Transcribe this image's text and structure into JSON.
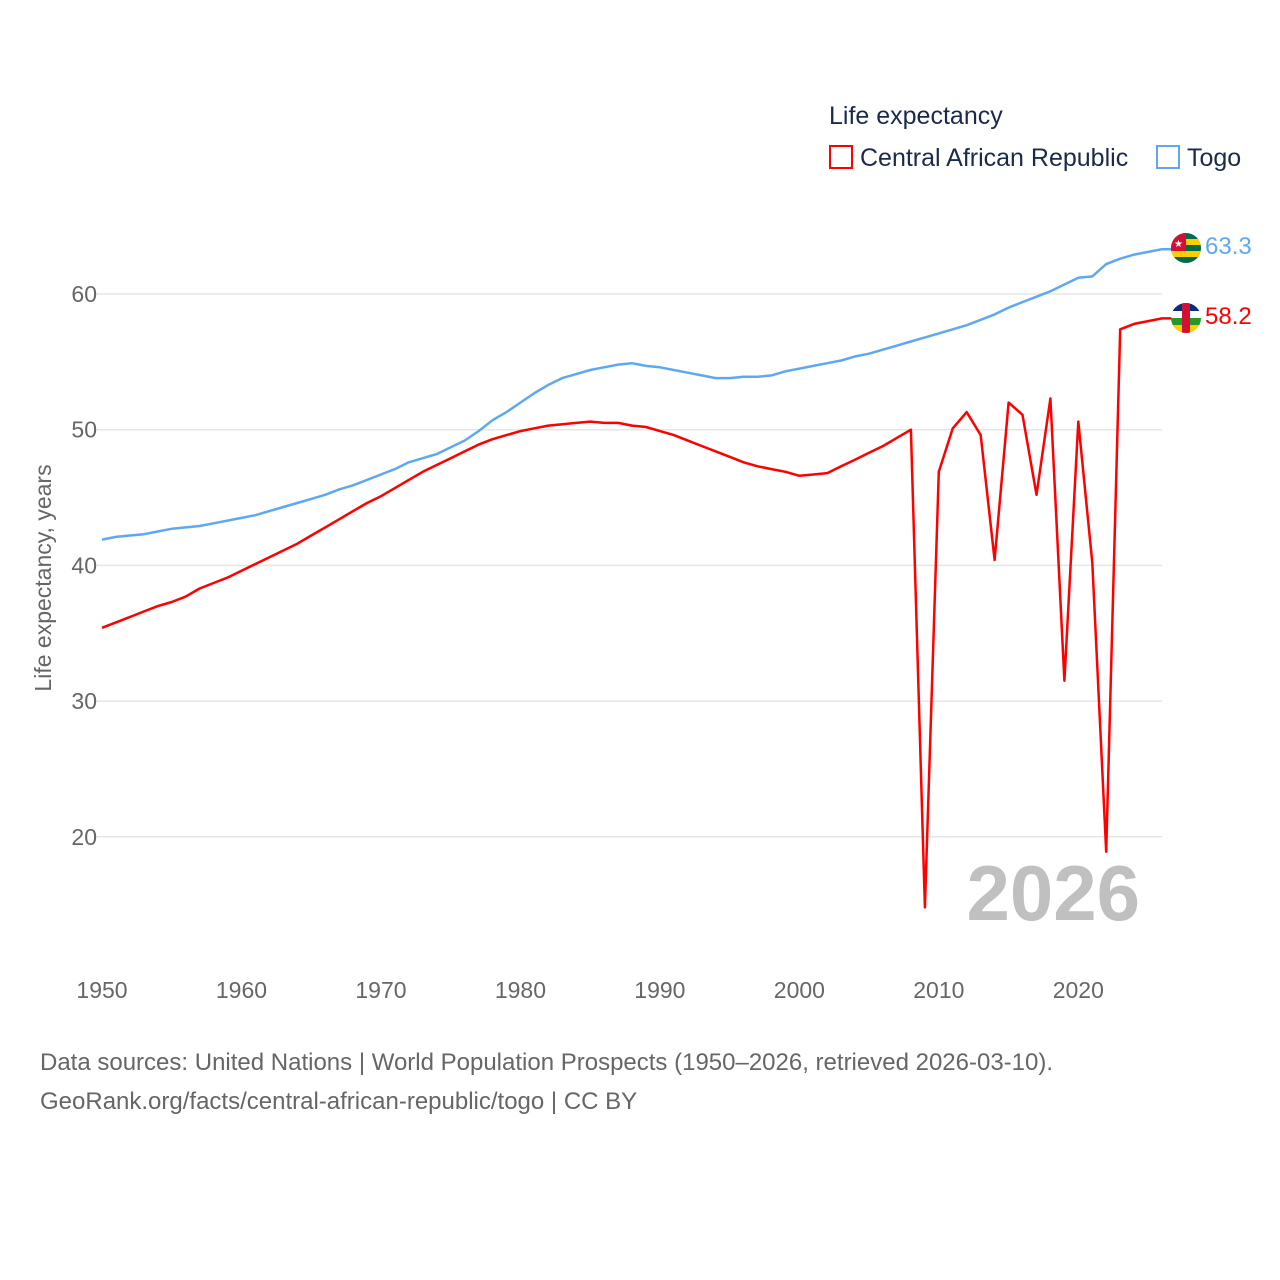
{
  "chart_data": {
    "type": "line",
    "legend_title": "Life expectancy",
    "ylabel": "Life expectancy, years",
    "xlabel": "",
    "xlim": [
      1950,
      2026
    ],
    "ylim": [
      12,
      67
    ],
    "x_ticks": [
      "1950",
      "1960",
      "1970",
      "1980",
      "1990",
      "2000",
      "2010",
      "2020"
    ],
    "y_ticks": [
      "20",
      "30",
      "40",
      "50",
      "60"
    ],
    "grid": true,
    "legend_position": "top-right",
    "current_year": "2026",
    "x_start": 1950,
    "series": [
      {
        "name": "Central African Republic",
        "color": "#ff0000",
        "end_label": "58.2",
        "values": [
          35.4,
          35.8,
          36.2,
          36.6,
          37.0,
          37.3,
          37.7,
          38.3,
          38.7,
          39.1,
          39.6,
          40.1,
          40.6,
          41.1,
          41.6,
          42.2,
          42.8,
          43.4,
          44.0,
          44.6,
          45.1,
          45.7,
          46.3,
          46.9,
          47.4,
          47.9,
          48.4,
          48.9,
          49.3,
          49.6,
          49.9,
          50.1,
          50.3,
          50.4,
          50.5,
          50.6,
          50.5,
          50.5,
          50.3,
          50.2,
          49.9,
          49.6,
          49.2,
          48.8,
          48.4,
          48.0,
          47.6,
          47.3,
          47.1,
          46.9,
          46.6,
          46.7,
          46.8,
          47.3,
          47.8,
          48.3,
          48.8,
          49.4,
          50.0,
          14.8,
          46.9,
          50.1,
          51.3,
          49.6,
          40.4,
          52.0,
          51.1,
          45.2,
          52.3,
          31.5,
          50.6,
          40.2,
          18.9,
          57.4,
          57.8,
          58.0,
          58.2
        ]
      },
      {
        "name": "Togo",
        "color": "#5fa8f0",
        "end_label": "63.3",
        "values": [
          41.9,
          42.1,
          42.2,
          42.3,
          42.5,
          42.7,
          42.8,
          42.9,
          43.1,
          43.3,
          43.5,
          43.7,
          44.0,
          44.3,
          44.6,
          44.9,
          45.2,
          45.6,
          45.9,
          46.3,
          46.7,
          47.1,
          47.6,
          47.9,
          48.2,
          48.7,
          49.2,
          49.9,
          50.7,
          51.3,
          52.0,
          52.7,
          53.3,
          53.8,
          54.1,
          54.4,
          54.6,
          54.8,
          54.9,
          54.7,
          54.6,
          54.4,
          54.2,
          54.0,
          53.8,
          53.8,
          53.9,
          53.9,
          54.0,
          54.3,
          54.5,
          54.7,
          54.9,
          55.1,
          55.4,
          55.6,
          55.9,
          56.2,
          56.5,
          56.8,
          57.1,
          57.4,
          57.7,
          58.1,
          58.5,
          59.0,
          59.4,
          59.8,
          60.2,
          60.7,
          61.2,
          61.3,
          62.2,
          62.6,
          62.9,
          63.1,
          63.3
        ]
      }
    ]
  },
  "footer": {
    "line1": "Data sources: United Nations | World Population Prospects (1950–2026, retrieved 2026-03-10).",
    "line2": "GeoRank.org/facts/central-african-republic/togo | CC BY"
  }
}
